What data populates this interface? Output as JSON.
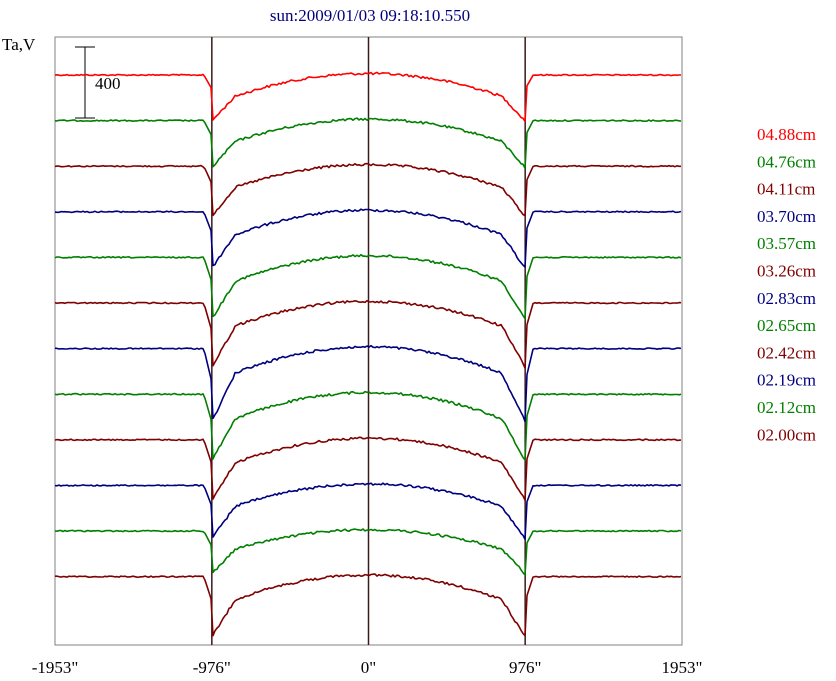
{
  "chart_data": {
    "type": "line",
    "title": "sun:2009/01/03 09:18:10.550",
    "ylabel": "Ta,V",
    "scale_bar_label": "400",
    "x_ticks": [
      "-1953\"",
      "-976\"",
      "0\"",
      "976\"",
      "1953\""
    ],
    "xlim": [
      -1953,
      1953
    ],
    "limb_markers": [
      -976,
      0,
      976
    ],
    "grid": false,
    "legend_position": "right",
    "series": [
      {
        "name": "04.88cm",
        "color": "#ff0000",
        "depth": 1.0,
        "limb_dip": 20
      },
      {
        "name": "04.76cm",
        "color": "#007f00",
        "depth": 0.98,
        "limb_dip": 22
      },
      {
        "name": "04.11cm",
        "color": "#7f0000",
        "depth": 1.0,
        "limb_dip": 25
      },
      {
        "name": "03.70cm",
        "color": "#00007f",
        "depth": 1.08,
        "limb_dip": 30
      },
      {
        "name": "03.57cm",
        "color": "#007f00",
        "depth": 1.12,
        "limb_dip": 35
      },
      {
        "name": "03.26cm",
        "color": "#7f0000",
        "depth": 1.08,
        "limb_dip": 40
      },
      {
        "name": "02.83cm",
        "color": "#00007f",
        "depth": 1.15,
        "limb_dip": 48
      },
      {
        "name": "02.65cm",
        "color": "#007f00",
        "depth": 1.15,
        "limb_dip": 40
      },
      {
        "name": "02.42cm",
        "color": "#7f0000",
        "depth": 1.08,
        "limb_dip": 35
      },
      {
        "name": "02.19cm",
        "color": "#00007f",
        "depth": 0.98,
        "limb_dip": 30
      },
      {
        "name": "02.12cm",
        "color": "#007f00",
        "depth": 0.85,
        "limb_dip": 22
      },
      {
        "name": "02.00cm",
        "color": "#7f0000",
        "depth": 1.08,
        "limb_dip": 35
      }
    ]
  }
}
